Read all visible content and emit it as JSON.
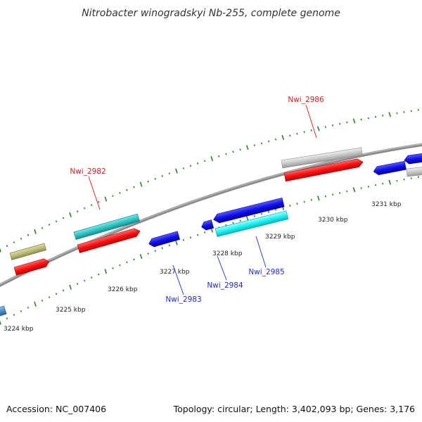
{
  "title": "Nitrobacter winogradskyi Nb-255, complete genome",
  "footer": {
    "accession": "Accession: NC_007406",
    "summary": "Topology: circular; Length: 3,402,093 bp; Genes: 3,176"
  },
  "colors": {
    "backbone": "#8a8a8a",
    "tick": "#2f7f2f",
    "forward_label": "#e41a1c",
    "reverse_label": "#1f2bd6",
    "leader_line_forward": "#e41a1c",
    "leader_line_reverse": "#1f2bd6"
  },
  "scale_ticks": [
    {
      "label": "3224 kbp"
    },
    {
      "label": "3225 kbp"
    },
    {
      "label": "3226 kbp"
    },
    {
      "label": "3227 kbp"
    },
    {
      "label": "3228 kbp"
    },
    {
      "label": "3229 kbp"
    },
    {
      "label": "3230 kbp"
    },
    {
      "label": "3231 kbp"
    }
  ],
  "gene_labels": [
    {
      "text": "Nwi_2982",
      "strand": "forward"
    },
    {
      "text": "Nwi_2983",
      "strand": "reverse"
    },
    {
      "text": "Nwi_2984",
      "strand": "reverse"
    },
    {
      "text": "Nwi_2985",
      "strand": "reverse"
    },
    {
      "text": "Nwi_2986",
      "strand": "forward"
    }
  ]
}
